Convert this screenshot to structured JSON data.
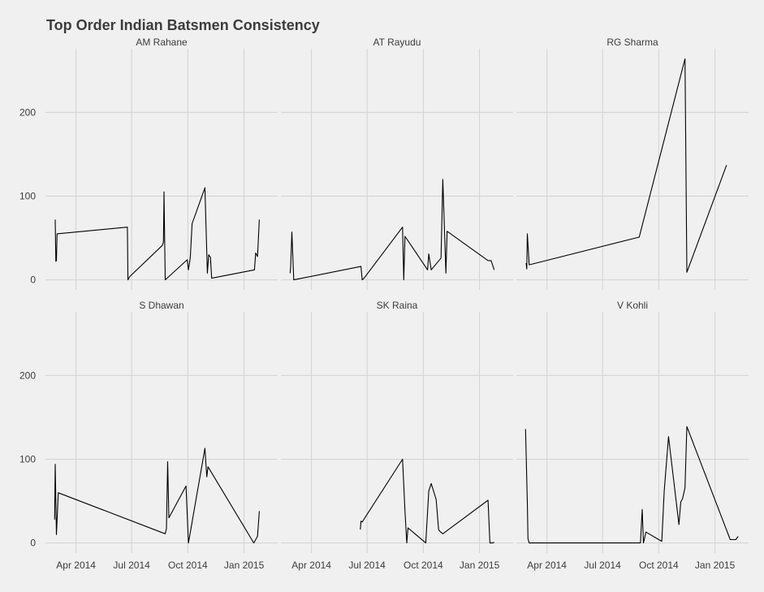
{
  "chart_data": {
    "type": "line",
    "title": "Top Order Indian Batsmen Consistency",
    "xlabel": "",
    "ylabel": "",
    "facets": true,
    "grid": true,
    "x_range": [
      "2014-02-10",
      "2015-02-25"
    ],
    "ylim": [
      -12,
      276
    ],
    "y_ticks": [
      0,
      100,
      200
    ],
    "x_ticks": [
      {
        "date": "2014-04-01",
        "label": "Apr 2014"
      },
      {
        "date": "2014-07-01",
        "label": "Jul 2014"
      },
      {
        "date": "2014-10-01",
        "label": "Oct 2014"
      },
      {
        "date": "2015-01-01",
        "label": "Jan 2015"
      }
    ],
    "series": [
      {
        "name": "AM Rahane",
        "points": [
          [
            "2014-02-26",
            72
          ],
          [
            "2014-02-27",
            22
          ],
          [
            "2014-02-28",
            23
          ],
          [
            "2014-03-01",
            55
          ],
          [
            "2014-06-24",
            63
          ],
          [
            "2014-06-25",
            0
          ],
          [
            "2014-06-28",
            4
          ],
          [
            "2014-08-20",
            41
          ],
          [
            "2014-08-22",
            45
          ],
          [
            "2014-08-23",
            105
          ],
          [
            "2014-08-25",
            0
          ],
          [
            "2014-09-30",
            24
          ],
          [
            "2014-10-02",
            12
          ],
          [
            "2014-10-05",
            27
          ],
          [
            "2014-10-08",
            67
          ],
          [
            "2014-10-29",
            110
          ],
          [
            "2014-11-02",
            8
          ],
          [
            "2014-11-04",
            30
          ],
          [
            "2014-11-07",
            27
          ],
          [
            "2014-11-09",
            2
          ],
          [
            "2015-01-18",
            12
          ],
          [
            "2015-01-20",
            32
          ],
          [
            "2015-01-23",
            28
          ],
          [
            "2015-01-26",
            72
          ]
        ]
      },
      {
        "name": "AT Rayudu",
        "points": [
          [
            "2014-02-25",
            8
          ],
          [
            "2014-02-26",
            16
          ],
          [
            "2014-02-28",
            57
          ],
          [
            "2014-03-03",
            0
          ],
          [
            "2014-06-21",
            16
          ],
          [
            "2014-06-23",
            0
          ],
          [
            "2014-06-26",
            2
          ],
          [
            "2014-08-28",
            63
          ],
          [
            "2014-08-30",
            0
          ],
          [
            "2014-09-01",
            52
          ],
          [
            "2014-10-08",
            12
          ],
          [
            "2014-10-10",
            31
          ],
          [
            "2014-10-14",
            12
          ],
          [
            "2014-10-30",
            26
          ],
          [
            "2014-11-02",
            120
          ],
          [
            "2014-11-07",
            8
          ],
          [
            "2014-11-09",
            58
          ],
          [
            "2015-01-15",
            23
          ],
          [
            "2015-01-20",
            23
          ],
          [
            "2015-01-25",
            12
          ]
        ]
      },
      {
        "name": "RG Sharma",
        "points": [
          [
            "2014-02-26",
            20
          ],
          [
            "2014-02-27",
            13
          ],
          [
            "2014-02-28",
            55
          ],
          [
            "2014-03-03",
            18
          ],
          [
            "2014-08-30",
            51
          ],
          [
            "2014-11-13",
            264
          ],
          [
            "2014-11-16",
            9
          ],
          [
            "2015-01-20",
            137
          ]
        ]
      },
      {
        "name": "S Dhawan",
        "points": [
          [
            "2014-02-25",
            28
          ],
          [
            "2014-02-26",
            94
          ],
          [
            "2014-02-28",
            10
          ],
          [
            "2014-03-03",
            60
          ],
          [
            "2014-08-25",
            11
          ],
          [
            "2014-08-27",
            17
          ],
          [
            "2014-08-29",
            97
          ],
          [
            "2014-08-31",
            30
          ],
          [
            "2014-09-28",
            68
          ],
          [
            "2014-10-02",
            0
          ],
          [
            "2014-10-29",
            113
          ],
          [
            "2014-11-01",
            79
          ],
          [
            "2014-11-03",
            91
          ],
          [
            "2015-01-17",
            0
          ],
          [
            "2015-01-23",
            8
          ],
          [
            "2015-01-26",
            38
          ]
        ]
      },
      {
        "name": "SK Raina",
        "points": [
          [
            "2014-06-20",
            16
          ],
          [
            "2014-06-21",
            26
          ],
          [
            "2014-06-23",
            25
          ],
          [
            "2014-08-28",
            100
          ],
          [
            "2014-09-01",
            38
          ],
          [
            "2014-09-04",
            0
          ],
          [
            "2014-09-06",
            18
          ],
          [
            "2014-10-05",
            0
          ],
          [
            "2014-10-10",
            62
          ],
          [
            "2014-10-14",
            71
          ],
          [
            "2014-10-22",
            52
          ],
          [
            "2014-10-26",
            16
          ],
          [
            "2014-10-28",
            14
          ],
          [
            "2014-11-02",
            11
          ],
          [
            "2015-01-15",
            51
          ],
          [
            "2015-01-18",
            0
          ],
          [
            "2015-01-23",
            0
          ],
          [
            "2015-01-25",
            1
          ]
        ]
      },
      {
        "name": "V Kohli",
        "points": [
          [
            "2014-02-25",
            136
          ],
          [
            "2014-02-28",
            48
          ],
          [
            "2014-03-01",
            5
          ],
          [
            "2014-03-03",
            0
          ],
          [
            "2014-09-01",
            0
          ],
          [
            "2014-09-04",
            40
          ],
          [
            "2014-09-06",
            0
          ],
          [
            "2014-09-10",
            13
          ],
          [
            "2014-10-06",
            2
          ],
          [
            "2014-10-10",
            62
          ],
          [
            "2014-10-17",
            127
          ],
          [
            "2014-11-03",
            22
          ],
          [
            "2014-11-06",
            49
          ],
          [
            "2014-11-09",
            53
          ],
          [
            "2014-11-13",
            66
          ],
          [
            "2014-11-16",
            139
          ],
          [
            "2015-01-26",
            4
          ],
          [
            "2015-02-04",
            4
          ],
          [
            "2015-02-08",
            8
          ]
        ]
      }
    ]
  }
}
